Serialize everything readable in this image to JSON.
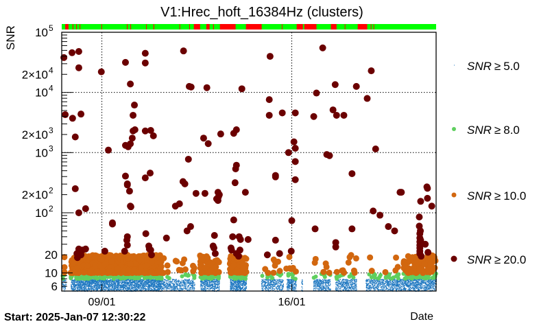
{
  "chart_data": {
    "type": "scatter",
    "title": "V1:Hrec_hoft_16384Hz (clusters)",
    "ylabel": "SNR",
    "xlabel": "Date",
    "start_label": "Start: 2025-Jan-07 12:30:22",
    "x_units": "days since start",
    "xlim": [
      0,
      13.8
    ],
    "ylim": [
      5,
      100000
    ],
    "yscale": "log",
    "grid": true,
    "x_ticks": [
      {
        "value": 1.48,
        "label": "09/01"
      },
      {
        "value": 8.48,
        "label": "16/01"
      }
    ],
    "y_tick_labels": [
      {
        "value": 100000,
        "label": "10",
        "sup": "5"
      },
      {
        "value": 20000,
        "label": "2×10",
        "sup": "4"
      },
      {
        "value": 10000,
        "label": "10",
        "sup": "4"
      },
      {
        "value": 2000,
        "label": "2×10",
        "sup": "3"
      },
      {
        "value": 1000,
        "label": "10",
        "sup": "3"
      },
      {
        "value": 200,
        "label": "2×10",
        "sup": "2"
      },
      {
        "value": 100,
        "label": "10",
        "sup": "2"
      },
      {
        "value": 20,
        "label": "20",
        "sup": ""
      },
      {
        "value": 10,
        "label": "10",
        "sup": ""
      },
      {
        "value": 6,
        "label": "6",
        "sup": ""
      }
    ],
    "legend_placement": "right",
    "series": [
      {
        "name": "SNR ≥ 5.0",
        "color": "#1f78c1",
        "label_main": "SNR",
        "label_op": "≥",
        "label_val": "5.0"
      },
      {
        "name": "SNR ≥ 8.0",
        "color": "#5fcf5f",
        "label_main": "SNR",
        "label_op": "≥",
        "label_val": "8.0"
      },
      {
        "name": "SNR ≥ 10.0",
        "color": "#d2670f",
        "label_main": "SNR",
        "label_op": "≥",
        "label_val": "10.0"
      },
      {
        "name": "SNR ≥ 20.0",
        "color": "#6b0000",
        "label_main": "SNR",
        "label_op": "≥",
        "label_val": "20.0"
      }
    ],
    "state_bar": {
      "ok_color": "#00ff00",
      "bad_color": "#ff0000",
      "bad_intervals": [
        [
          0.13,
          0.25
        ],
        [
          0.4,
          0.43
        ],
        [
          0.53,
          0.56
        ],
        [
          0.66,
          0.68
        ],
        [
          1.46,
          1.48
        ],
        [
          2.4,
          2.43
        ],
        [
          2.53,
          2.55
        ],
        [
          3.11,
          3.13
        ],
        [
          3.38,
          3.41
        ],
        [
          4.34,
          4.36
        ],
        [
          4.7,
          4.72
        ],
        [
          4.87,
          5.1
        ],
        [
          5.33,
          5.45
        ],
        [
          5.58,
          5.61
        ],
        [
          5.83,
          6.41
        ],
        [
          6.79,
          7.37
        ],
        [
          8.11,
          8.13
        ],
        [
          8.66,
          8.89
        ],
        [
          8.94,
          9.39
        ],
        [
          9.92,
          10.13
        ],
        [
          10.43,
          10.45
        ],
        [
          10.91,
          11.26
        ],
        [
          11.39,
          11.41
        ],
        [
          11.49,
          11.51
        ]
      ]
    },
    "activity_segments": [
      {
        "start": 0.0,
        "end": 0.15,
        "snr5": 60,
        "snr8": 4,
        "snr10": 3
      },
      {
        "start": 0.33,
        "end": 0.76,
        "snr5": 300,
        "snr8": 25,
        "snr10": 40
      },
      {
        "start": 0.76,
        "end": 3.7,
        "snr5": 2200,
        "snr8": 180,
        "snr10": 420
      },
      {
        "start": 3.7,
        "end": 4.9,
        "snr5": 500,
        "snr8": 12,
        "snr10": 14
      },
      {
        "start": 5.1,
        "end": 5.8,
        "snr5": 420,
        "snr8": 40,
        "snr10": 45
      },
      {
        "start": 6.2,
        "end": 6.8,
        "snr5": 450,
        "snr8": 60,
        "snr10": 90
      },
      {
        "start": 7.35,
        "end": 8.16,
        "snr5": 380,
        "snr8": 12,
        "snr10": 8
      },
      {
        "start": 8.28,
        "end": 8.64,
        "snr5": 200,
        "snr8": 8,
        "snr10": 6
      },
      {
        "start": 8.83,
        "end": 8.87,
        "snr5": 20,
        "snr8": 0,
        "snr10": 0
      },
      {
        "start": 9.27,
        "end": 9.9,
        "snr5": 300,
        "snr8": 8,
        "snr10": 6
      },
      {
        "start": 10.08,
        "end": 10.86,
        "snr5": 380,
        "snr8": 10,
        "snr10": 10
      },
      {
        "start": 11.2,
        "end": 12.6,
        "snr5": 700,
        "snr8": 25,
        "snr10": 6
      },
      {
        "start": 12.6,
        "end": 13.8,
        "snr5": 700,
        "snr8": 70,
        "snr10": 70
      }
    ],
    "points_snr20": [
      [
        0.08,
        38000
      ],
      [
        0.38,
        45700
      ],
      [
        0.63,
        47900
      ],
      [
        0.63,
        25700
      ],
      [
        1.46,
        22000
      ],
      [
        2.35,
        31600
      ],
      [
        2.53,
        13800
      ],
      [
        3.08,
        44700
      ],
      [
        3.08,
        30900
      ],
      [
        4.49,
        49000
      ],
      [
        4.7,
        12600
      ],
      [
        4.77,
        12300
      ],
      [
        5.35,
        12000
      ],
      [
        6.64,
        11500
      ],
      [
        7.68,
        39800
      ],
      [
        7.65,
        7590
      ],
      [
        7.65,
        4170
      ],
      [
        8.13,
        4570
      ],
      [
        8.61,
        4570
      ],
      [
        9.29,
        3980
      ],
      [
        9.62,
        55000
      ],
      [
        9.39,
        9770
      ],
      [
        10.08,
        13500
      ],
      [
        10.0,
        5130
      ],
      [
        10.13,
        4170
      ],
      [
        10.4,
        4170
      ],
      [
        10.86,
        12600
      ],
      [
        11.26,
        7940
      ],
      [
        11.41,
        22900
      ],
      [
        11.57,
        1150
      ],
      [
        0.13,
        4270
      ],
      [
        0.4,
        3720
      ],
      [
        0.71,
        4370
      ],
      [
        0.5,
        1820
      ],
      [
        1.72,
        1100
      ],
      [
        2.35,
        1320
      ],
      [
        2.45,
        1250
      ],
      [
        2.53,
        1400
      ],
      [
        2.6,
        1740
      ],
      [
        2.63,
        2290
      ],
      [
        2.7,
        2400
      ],
      [
        2.63,
        4170
      ],
      [
        2.68,
        6170
      ],
      [
        3.08,
        2290
      ],
      [
        3.28,
        2340
      ],
      [
        3.38,
        1900
      ],
      [
        5.23,
        1740
      ],
      [
        5.4,
        1410
      ],
      [
        5.86,
        2040
      ],
      [
        6.44,
        2400
      ],
      [
        6.34,
        2090
      ],
      [
        8.56,
        1510
      ],
      [
        8.36,
        1000
      ],
      [
        8.61,
        1180
      ],
      [
        8.61,
        710
      ],
      [
        8.61,
        355
      ],
      [
        9.77,
        930
      ],
      [
        9.87,
        890
      ],
      [
        0.5,
        251
      ],
      [
        0.63,
        100
      ],
      [
        0.88,
        117
      ],
      [
        2.35,
        407
      ],
      [
        2.42,
        302
      ],
      [
        2.42,
        290
      ],
      [
        2.5,
        229
      ],
      [
        2.53,
        129
      ],
      [
        2.55,
        126
      ],
      [
        3.08,
        380
      ],
      [
        3.26,
        457
      ],
      [
        4.19,
        129
      ],
      [
        4.34,
        141
      ],
      [
        4.54,
        302
      ],
      [
        4.47,
        330
      ],
      [
        4.67,
        776
      ],
      [
        4.95,
        210
      ],
      [
        5.28,
        210
      ],
      [
        5.76,
        219
      ],
      [
        5.71,
        170
      ],
      [
        5.76,
        160
      ],
      [
        5.78,
        185
      ],
      [
        5.81,
        200
      ],
      [
        6.41,
        537
      ],
      [
        6.39,
        316
      ],
      [
        6.44,
        617
      ],
      [
        6.77,
        219
      ],
      [
        7.88,
        417
      ],
      [
        7.88,
        395
      ],
      [
        8.48,
        74
      ],
      [
        10.7,
        447
      ],
      [
        11.48,
        107
      ],
      [
        11.73,
        91
      ],
      [
        12.47,
        219
      ],
      [
        12.52,
        219
      ],
      [
        13.46,
        269
      ],
      [
        13.48,
        255
      ],
      [
        13.48,
        174
      ],
      [
        13.64,
        129
      ],
      [
        13.23,
        155
      ],
      [
        13.18,
        85
      ],
      [
        12.04,
        59
      ],
      [
        12.27,
        50
      ],
      [
        10.7,
        54
      ],
      [
        9.34,
        54
      ],
      [
        7.88,
        35
      ],
      [
        6.87,
        36
      ],
      [
        6.34,
        76
      ],
      [
        6.3,
        40
      ],
      [
        6.54,
        40
      ],
      [
        6.59,
        36
      ],
      [
        5.63,
        42
      ],
      [
        4.62,
        50
      ],
      [
        4.75,
        59
      ],
      [
        3.86,
        38
      ],
      [
        2.4,
        35
      ],
      [
        2.42,
        40
      ],
      [
        2.42,
        29
      ],
      [
        1.87,
        68
      ],
      [
        1.87,
        65
      ],
      [
        1.59,
        23
      ],
      [
        2.32,
        23
      ],
      [
        3.1,
        45
      ],
      [
        3.31,
        20
      ],
      [
        3.28,
        24
      ],
      [
        3.21,
        28
      ],
      [
        3.23,
        25
      ],
      [
        0.63,
        25
      ],
      [
        0.76,
        24
      ],
      [
        0.88,
        25
      ],
      [
        0.56,
        21
      ],
      [
        0.58,
        18
      ],
      [
        0.71,
        20
      ],
      [
        0.65,
        22
      ],
      [
        5.58,
        28
      ],
      [
        5.61,
        26
      ],
      [
        5.66,
        21
      ],
      [
        6.24,
        26
      ],
      [
        6.26,
        24
      ],
      [
        6.44,
        21
      ],
      [
        6.57,
        24
      ],
      [
        6.52,
        19
      ],
      [
        8.46,
        23
      ],
      [
        10.1,
        32
      ],
      [
        10.1,
        27
      ],
      [
        7.58,
        20
      ],
      [
        8.03,
        21
      ],
      [
        13.18,
        60
      ],
      [
        13.2,
        45
      ],
      [
        13.2,
        38
      ],
      [
        13.2,
        33
      ],
      [
        13.2,
        29
      ],
      [
        13.2,
        26
      ],
      [
        13.2,
        23
      ],
      [
        13.2,
        21
      ],
      [
        13.22,
        50
      ],
      [
        13.23,
        35
      ],
      [
        13.25,
        31
      ],
      [
        13.4,
        30
      ],
      [
        13.5,
        22
      ],
      [
        13.25,
        19
      ]
    ]
  }
}
